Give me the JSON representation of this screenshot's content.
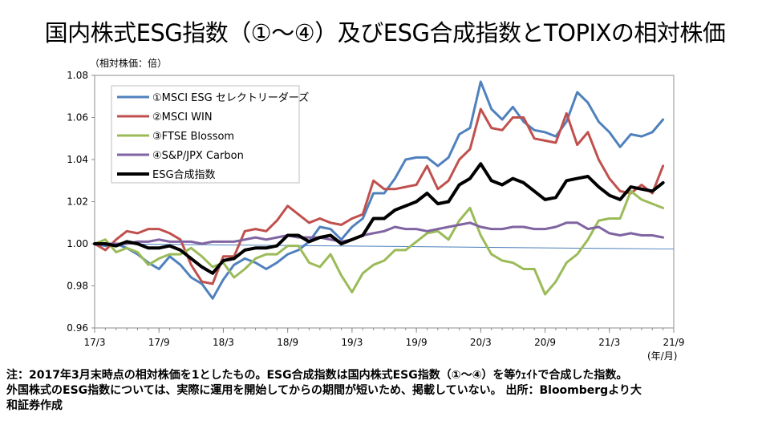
{
  "page": {
    "title": "国内株式ESG指数（①～④）及びESG合成指数とTOPIXの相対株価",
    "note_lines": [
      "注：2017年3月末時点の相対株価を1としたもの。ESG合成指数は国内株式ESG指数（①～④）を等ｳｪｲﾄで合成した指数。",
      "外国株式のESG指数については、実際に運用を開始してからの期間が短いため、掲載していない。 出所：Bloombergより大",
      "和証券作成"
    ]
  },
  "chart_data": {
    "type": "line",
    "y_unit_label": "（相対株価：倍）",
    "x_unit_label": "(年/月)",
    "ylim": [
      0.96,
      1.08
    ],
    "y_ticks": [
      "0.96",
      "0.98",
      "1.00",
      "1.02",
      "1.04",
      "1.06",
      "1.08"
    ],
    "x_ticks": [
      {
        "i": 0,
        "label": "17/3"
      },
      {
        "i": 6,
        "label": "17/9"
      },
      {
        "i": 12,
        "label": "18/3"
      },
      {
        "i": 18,
        "label": "18/9"
      },
      {
        "i": 24,
        "label": "19/3"
      },
      {
        "i": 30,
        "label": "19/9"
      },
      {
        "i": 36,
        "label": "20/3"
      },
      {
        "i": 42,
        "label": "20/9"
      },
      {
        "i": 48,
        "label": "21/3"
      },
      {
        "i": 54,
        "label": "21/9"
      }
    ],
    "reference_line": {
      "name": "TOPIX",
      "value": 1.0,
      "end_value": 0.9975,
      "color": "#4a7ebb"
    },
    "series": [
      {
        "name": "①MSCI ESG セレクトリーダーズ",
        "color": "#4f81bd",
        "width": 3,
        "values": [
          1.0,
          0.999,
          1.0,
          0.998,
          0.995,
          0.991,
          0.988,
          0.994,
          0.99,
          0.984,
          0.981,
          0.974,
          0.983,
          0.99,
          0.993,
          0.991,
          0.988,
          0.991,
          0.995,
          0.997,
          1.001,
          1.008,
          1.007,
          1.002,
          1.008,
          1.012,
          1.024,
          1.024,
          1.031,
          1.04,
          1.041,
          1.041,
          1.037,
          1.041,
          1.052,
          1.055,
          1.077,
          1.064,
          1.059,
          1.065,
          1.058,
          1.054,
          1.053,
          1.051,
          1.058,
          1.072,
          1.067,
          1.058,
          1.053,
          1.046,
          1.052,
          1.051,
          1.053,
          1.059
        ]
      },
      {
        "name": "②MSCI WIN",
        "color": "#c0504d",
        "width": 3,
        "values": [
          1.0,
          0.997,
          1.002,
          1.006,
          1.005,
          1.007,
          1.007,
          1.005,
          1.002,
          0.99,
          0.982,
          0.981,
          0.994,
          0.994,
          1.006,
          1.007,
          1.006,
          1.011,
          1.018,
          1.014,
          1.01,
          1.012,
          1.01,
          1.009,
          1.012,
          1.014,
          1.03,
          1.026,
          1.026,
          1.027,
          1.028,
          1.037,
          1.026,
          1.03,
          1.04,
          1.045,
          1.064,
          1.055,
          1.054,
          1.06,
          1.06,
          1.05,
          1.049,
          1.048,
          1.062,
          1.047,
          1.053,
          1.04,
          1.031,
          1.025,
          1.024,
          1.028,
          1.024,
          1.037
        ]
      },
      {
        "name": "③FTSE  Blossom",
        "color": "#9bbb59",
        "width": 3,
        "values": [
          1.0,
          1.002,
          0.996,
          0.998,
          0.996,
          0.99,
          0.993,
          0.995,
          0.995,
          0.998,
          0.994,
          0.989,
          0.991,
          0.984,
          0.988,
          0.993,
          0.995,
          0.995,
          0.999,
          0.999,
          0.991,
          0.989,
          0.995,
          0.985,
          0.977,
          0.986,
          0.99,
          0.992,
          0.997,
          0.997,
          1.001,
          1.005,
          1.006,
          1.002,
          1.011,
          1.017,
          1.004,
          0.995,
          0.992,
          0.991,
          0.988,
          0.988,
          0.976,
          0.982,
          0.991,
          0.995,
          1.002,
          1.011,
          1.012,
          1.012,
          1.025,
          1.021,
          1.019,
          1.017
        ]
      },
      {
        "name": "④S&P/JPX Carbon",
        "color": "#8064a2",
        "width": 3,
        "values": [
          1.0,
          1.0,
          1.0,
          1.0,
          1.001,
          1.001,
          1.002,
          1.001,
          1.001,
          1.001,
          1.0,
          1.001,
          1.001,
          1.001,
          1.002,
          1.003,
          1.002,
          1.003,
          1.004,
          1.003,
          1.003,
          1.003,
          1.002,
          1.001,
          1.002,
          1.004,
          1.005,
          1.006,
          1.008,
          1.007,
          1.007,
          1.006,
          1.007,
          1.008,
          1.009,
          1.01,
          1.008,
          1.007,
          1.007,
          1.008,
          1.008,
          1.007,
          1.007,
          1.008,
          1.01,
          1.01,
          1.007,
          1.008,
          1.005,
          1.004,
          1.005,
          1.004,
          1.004,
          1.003
        ]
      },
      {
        "name": "ESG合成指数",
        "color": "#000000",
        "width": 4,
        "values": [
          1.0,
          1.0,
          0.999,
          1.001,
          1.0,
          0.998,
          0.998,
          0.999,
          0.997,
          0.993,
          0.989,
          0.986,
          0.992,
          0.993,
          0.997,
          0.998,
          0.998,
          0.999,
          1.004,
          1.004,
          1.001,
          1.003,
          1.004,
          1.0,
          1.002,
          1.004,
          1.012,
          1.012,
          1.016,
          1.018,
          1.02,
          1.024,
          1.019,
          1.02,
          1.028,
          1.031,
          1.038,
          1.03,
          1.028,
          1.031,
          1.029,
          1.025,
          1.021,
          1.022,
          1.03,
          1.031,
          1.032,
          1.027,
          1.023,
          1.021,
          1.027,
          1.026,
          1.025,
          1.029
        ]
      }
    ]
  }
}
